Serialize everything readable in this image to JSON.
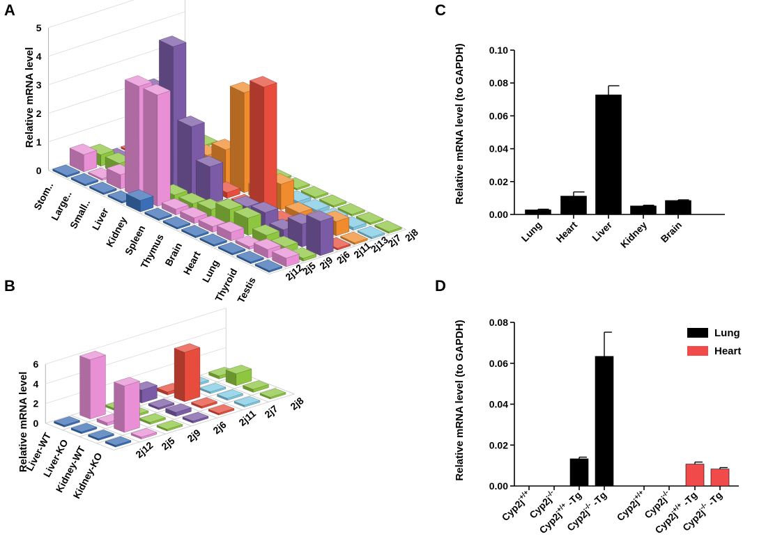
{
  "panels": {
    "A": {
      "label": "A",
      "ylabel": "Relative mRNA level"
    },
    "B": {
      "label": "B",
      "ylabel": "Relative mRNA level"
    },
    "C": {
      "label": "C",
      "ylabel": "Relative mRNA level (to GAPDH)"
    },
    "D": {
      "label": "D",
      "ylabel": "Relative mRNA level (to GAPDH)"
    }
  },
  "chart_data": [
    {
      "panel": "A",
      "type": "bar",
      "subtype": "3d-bar",
      "ylabel": "Relative mRNA level",
      "ylim": [
        0,
        5
      ],
      "yticks": [
        0,
        1,
        2,
        3,
        4,
        5
      ],
      "categories": [
        "Stom..",
        "Large..",
        "Small..",
        "Liver",
        "Kidney",
        "Spleen",
        "Thymus",
        "Brain",
        "Heart",
        "Lung",
        "Thyroid",
        "Testis"
      ],
      "genes": [
        "2j12",
        "2j5",
        "2j9",
        "2j6",
        "2j11",
        "2j13",
        "2j7",
        "2j8"
      ],
      "colors": {
        "2j12": "#3b6eb5",
        "2j5": "#e88fd6",
        "2j9": "#8ec63f",
        "2j6": "#7b5aa6",
        "2j11": "#e74c3c",
        "2j13": "#f08c2e",
        "2j7": "#7ec8e3",
        "2j8": "#8ec63f"
      },
      "series": [
        {
          "name": "2j12",
          "values": [
            0.05,
            0.05,
            0.05,
            0.05,
            0.4,
            0.05,
            0.05,
            0.05,
            0.05,
            0.05,
            0.05,
            0.05
          ]
        },
        {
          "name": "2j5",
          "values": [
            0.6,
            0.05,
            0.5,
            3.9,
            3.9,
            0.2,
            0.2,
            0.2,
            0.3,
            0.1,
            0.3,
            0.3
          ]
        },
        {
          "name": "2j9",
          "values": [
            0.4,
            0.4,
            0.3,
            0.2,
            0.2,
            0.2,
            0.3,
            0.6,
            0.6,
            0.3,
            0.2,
            0.1
          ]
        },
        {
          "name": "2j6",
          "values": [
            0.05,
            0.05,
            3.1,
            4.9,
            2.4,
            1.3,
            0.1,
            0.5,
            0.6,
            0.3,
            0.8,
            1.2
          ]
        },
        {
          "name": "2j11",
          "values": [
            0.05,
            0.1,
            0.6,
            0.1,
            0.2,
            0.2,
            0.05,
            4.5,
            0.1,
            0.2,
            0.3,
            0.05
          ]
        },
        {
          "name": "2j13",
          "values": [
            0.05,
            0.3,
            0.1,
            0.7,
            1.2,
            3.5,
            0.4,
            0.9,
            0.2,
            0.2,
            0.5,
            0.05
          ]
        },
        {
          "name": "2j7",
          "values": [
            0.05,
            0.05,
            0.05,
            0.2,
            0.2,
            0.2,
            0.05,
            0.1,
            0.1,
            0.1,
            0.1,
            0.05
          ]
        },
        {
          "name": "2j8",
          "values": [
            0.05,
            0.05,
            0.05,
            0.05,
            2.0,
            0.05,
            0.05,
            0.05,
            0.05,
            0.05,
            0.05,
            0.05
          ]
        }
      ]
    },
    {
      "panel": "B",
      "type": "bar",
      "subtype": "3d-bar",
      "ylabel": "Relative mRNA level",
      "ylim": [
        0,
        6
      ],
      "yticks": [
        0,
        2,
        4,
        6
      ],
      "categories": [
        "Liver-WT",
        "Liver-KO",
        "Kidney-WT",
        "Kidney-KO"
      ],
      "genes": [
        "2j12",
        "2j5",
        "2j9",
        "2j6",
        "2j11",
        "2j7",
        "2j8"
      ],
      "colors": {
        "2j12": "#3b6eb5",
        "2j5": "#e88fd6",
        "2j9": "#8ec63f",
        "2j6": "#7b5aa6",
        "2j11": "#e74c3c",
        "2j7": "#7ec8e3",
        "2j8": "#8ec63f"
      },
      "series": [
        {
          "name": "2j12",
          "values": [
            0.1,
            0.1,
            0.1,
            0.1
          ]
        },
        {
          "name": "2j5",
          "values": [
            6.0,
            0.3,
            4.7,
            0.2
          ]
        },
        {
          "name": "2j9",
          "values": [
            0.2,
            0.2,
            0.2,
            0.1
          ]
        },
        {
          "name": "2j6",
          "values": [
            1.3,
            0.2,
            0.4,
            0.2
          ]
        },
        {
          "name": "2j11",
          "values": [
            0.3,
            5.0,
            0.2,
            0.1
          ]
        },
        {
          "name": "2j7",
          "values": [
            0.2,
            0.1,
            0.2,
            0.1
          ]
        },
        {
          "name": "2j8",
          "values": [
            0.3,
            1.2,
            0.3,
            0.1
          ]
        }
      ]
    },
    {
      "panel": "C",
      "type": "bar",
      "ylabel": "Relative mRNA level (to GAPDH)",
      "ylim": [
        0,
        0.1
      ],
      "yticks": [
        "0.00",
        "0.02",
        "0.04",
        "0.06",
        "0.08",
        "0.10"
      ],
      "categories": [
        "Lung",
        "Heart",
        "Liver",
        "Kidney",
        "Brain"
      ],
      "values": [
        0.0028,
        0.0112,
        0.0728,
        0.0052,
        0.0085
      ],
      "errors": [
        0.0004,
        0.0025,
        0.0055,
        0.0004,
        0.0004
      ],
      "color": "#000000"
    },
    {
      "panel": "D",
      "type": "bar",
      "ylabel": "Relative mRNA level (to GAPDH)",
      "ylim": [
        0,
        0.08
      ],
      "yticks": [
        "0.00",
        "0.02",
        "0.04",
        "0.06",
        "0.08"
      ],
      "categories": [
        {
          "base": "Cyp2j",
          "sup": "+/+",
          "suffix": ""
        },
        {
          "base": "Cyp2j",
          "sup": "-/-",
          "suffix": ""
        },
        {
          "base": "Cyp2j",
          "sup": "+/+",
          "suffix": " -Tg"
        },
        {
          "base": "Cyp2j",
          "sup": "-/-",
          "suffix": " -Tg"
        }
      ],
      "legend": {
        "position": "top-right"
      },
      "series": [
        {
          "name": "Lung",
          "color": "#000000",
          "values": [
            0,
            0,
            0.0133,
            0.0634
          ],
          "errors": [
            0,
            0,
            0.0008,
            0.0118
          ]
        },
        {
          "name": "Heart",
          "color": "#f04a4a",
          "values": [
            0,
            0,
            0.0107,
            0.0083
          ],
          "errors": [
            0,
            0,
            0.001,
            0.0007
          ]
        }
      ]
    }
  ]
}
